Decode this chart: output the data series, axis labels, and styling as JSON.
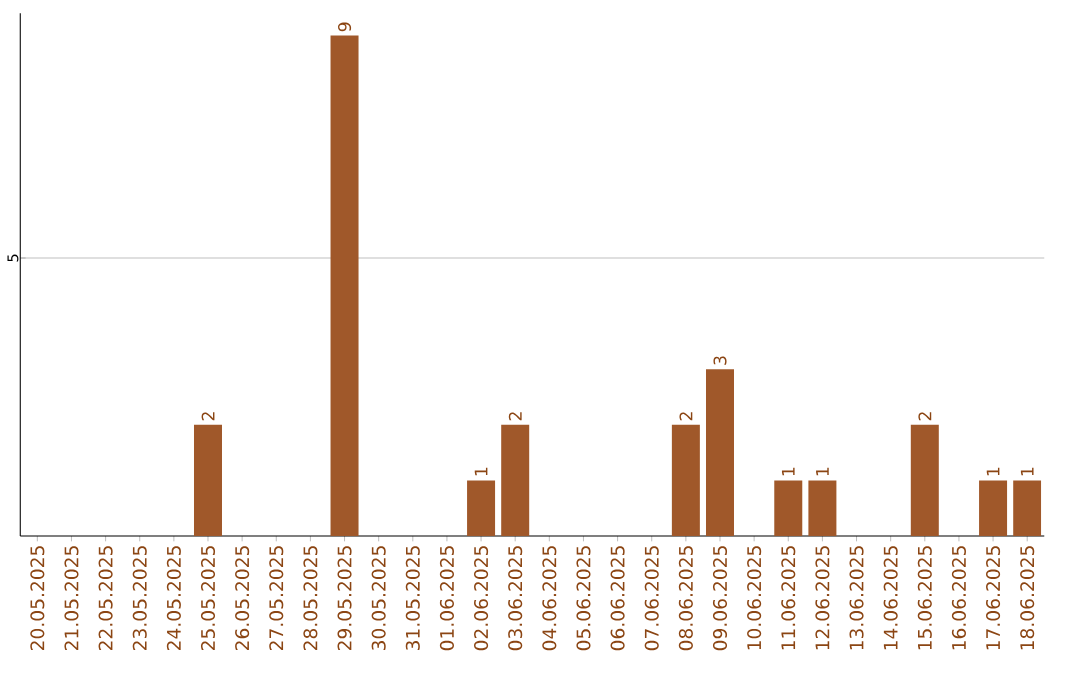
{
  "chart_data": {
    "type": "bar",
    "categories": [
      "20.05.2025",
      "21.05.2025",
      "22.05.2025",
      "23.05.2025",
      "24.05.2025",
      "25.05.2025",
      "26.05.2025",
      "27.05.2025",
      "28.05.2025",
      "29.05.2025",
      "30.05.2025",
      "31.05.2025",
      "01.06.2025",
      "02.06.2025",
      "03.06.2025",
      "04.06.2025",
      "05.06.2025",
      "06.06.2025",
      "07.06.2025",
      "08.06.2025",
      "09.06.2025",
      "10.06.2025",
      "11.06.2025",
      "12.06.2025",
      "13.06.2025",
      "14.06.2025",
      "15.06.2025",
      "16.06.2025",
      "17.06.2025",
      "18.06.2025"
    ],
    "values": [
      0,
      0,
      0,
      0,
      0,
      2,
      0,
      0,
      0,
      9,
      0,
      0,
      0,
      1,
      2,
      0,
      0,
      0,
      0,
      2,
      3,
      0,
      1,
      1,
      0,
      0,
      2,
      0,
      1,
      1
    ],
    "value_labels": [
      null,
      null,
      null,
      null,
      null,
      "2",
      null,
      null,
      null,
      "9",
      null,
      null,
      null,
      "1",
      "2",
      null,
      null,
      null,
      null,
      "2",
      "3",
      null,
      "1",
      "1",
      null,
      null,
      "2",
      null,
      "1",
      "1"
    ],
    "color": "#a0582a",
    "ylim": [
      0,
      9.4
    ],
    "yticks": [
      5
    ],
    "grid": "y"
  }
}
